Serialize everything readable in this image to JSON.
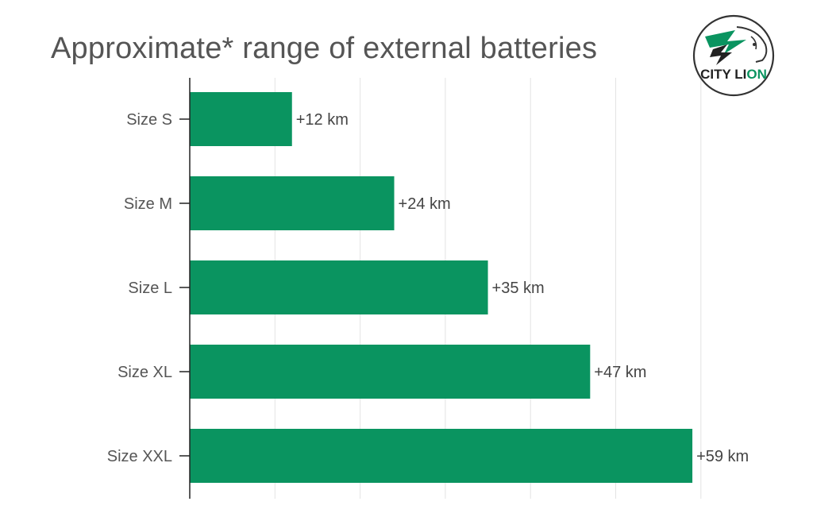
{
  "chart_data": {
    "type": "bar",
    "orientation": "horizontal",
    "title": "Approximate* range of external batteries",
    "categories": [
      "Size S",
      "Size M",
      "Size L",
      "Size XL",
      "Size XXL"
    ],
    "values": [
      12,
      24,
      35,
      47,
      59
    ],
    "value_labels": [
      "+12 km",
      "+24 km",
      "+35 km",
      "+47 km",
      "+59 km"
    ],
    "unit": "km",
    "xlim": [
      0,
      60
    ],
    "grid": true,
    "bar_color": "#0a9460"
  },
  "logo": {
    "text_main": "CITY LI",
    "text_accent": "ON",
    "accent_color": "#0a9460"
  }
}
